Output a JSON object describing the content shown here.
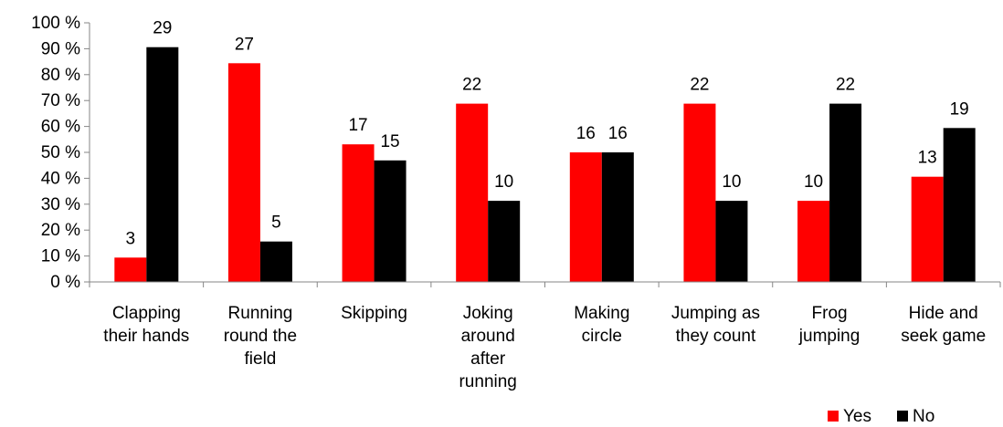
{
  "chart_data": {
    "type": "bar",
    "categories": [
      [
        "Clapping",
        "their hands"
      ],
      [
        "Running",
        "round the",
        "field"
      ],
      [
        "Skipping"
      ],
      [
        "Joking",
        "around",
        "after",
        "running"
      ],
      [
        "Making",
        "circle"
      ],
      [
        "Jumping as",
        "they count"
      ],
      [
        "Frog",
        "jumping"
      ],
      [
        "Hide and",
        "seek game"
      ]
    ],
    "series": [
      {
        "name": "Yes",
        "color": "#ff0000",
        "values": [
          9.4,
          84.4,
          53.1,
          68.8,
          50.0,
          68.8,
          31.3,
          40.6
        ],
        "labels": [
          "3",
          "27",
          "17",
          "22",
          "16",
          "22",
          "10",
          "13"
        ]
      },
      {
        "name": "No",
        "color": "#000000",
        "values": [
          90.6,
          15.6,
          46.9,
          31.3,
          50.0,
          31.3,
          68.8,
          59.4
        ],
        "labels": [
          "29",
          "5",
          "15",
          "10",
          "16",
          "10",
          "22",
          "19"
        ]
      }
    ],
    "y_ticks": [
      "0 %",
      "10 %",
      "20 %",
      "30 %",
      "40 %",
      "50 %",
      "60 %",
      "70 %",
      "80 %",
      "90 %",
      "100 %"
    ],
    "ylim": [
      0,
      100
    ],
    "grid": false,
    "legend_position": "bottom-right"
  }
}
